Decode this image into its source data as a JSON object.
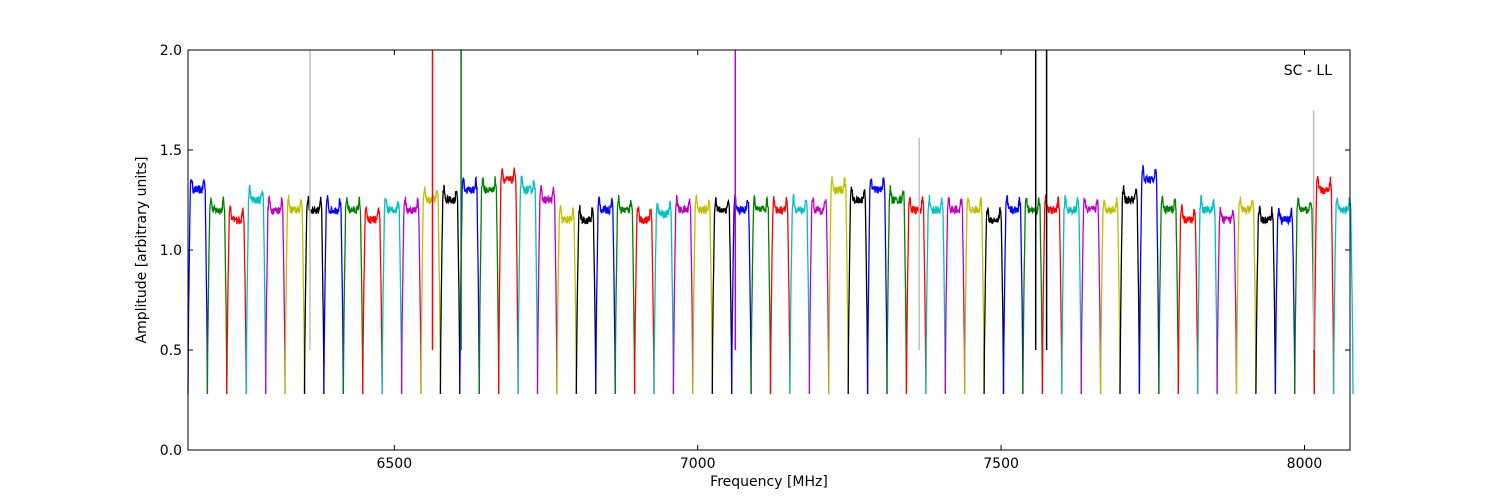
{
  "chart_data": {
    "type": "line",
    "xlabel": "Frequency [MHz]",
    "ylabel": "Amplitude [arbitrary units]",
    "annotation": "SC - LL",
    "annotation_position": "top-right",
    "xlim": [
      6160,
      8075
    ],
    "ylim": [
      0.0,
      2.0
    ],
    "xticks": [
      6500,
      7000,
      7500,
      8000
    ],
    "xtick_labels": [
      "6500",
      "7000",
      "7500",
      "8000"
    ],
    "yticks": [
      0.0,
      0.5,
      1.0,
      1.5,
      2.0
    ],
    "ytick_labels": [
      "0.0",
      "0.5",
      "1.0",
      "1.5",
      "2.0"
    ],
    "grid": false,
    "background_trace_color": "#bfbfbf",
    "series_colors": [
      "#0000ff",
      "#008000",
      "#ff0000",
      "#00bfbf",
      "#bf00bf",
      "#bfbf00",
      "#000000"
    ],
    "band_start_mhz": 6160,
    "band_width_mhz": 32,
    "band_count": 60,
    "band_floor": 0.28,
    "band_plateau": [
      1.3,
      1.2,
      1.15,
      1.25,
      1.2,
      1.2,
      1.2,
      1.2,
      1.2,
      1.15,
      1.2,
      1.2,
      1.25,
      1.25,
      1.3,
      1.3,
      1.35,
      1.3,
      1.25,
      1.15,
      1.15,
      1.2,
      1.2,
      1.15,
      1.18,
      1.2,
      1.2,
      1.2,
      1.2,
      1.2,
      1.2,
      1.2,
      1.2,
      1.3,
      1.25,
      1.3,
      1.25,
      1.2,
      1.2,
      1.2,
      1.2,
      1.15,
      1.2,
      1.2,
      1.2,
      1.2,
      1.2,
      1.2,
      1.25,
      1.35,
      1.2,
      1.15,
      1.2,
      1.15,
      1.2,
      1.15,
      1.15,
      1.2,
      1.3,
      1.2
    ],
    "spikes": [
      {
        "x": 6361,
        "y": 2.0,
        "color": "#bfbfbf"
      },
      {
        "x": 6563,
        "y": 2.0,
        "color": "#ff0000"
      },
      {
        "x": 6610,
        "y": 2.0,
        "color": "#008000"
      },
      {
        "x": 7062,
        "y": 2.0,
        "color": "#bf00bf"
      },
      {
        "x": 7557,
        "y": 2.0,
        "color": "#000000"
      },
      {
        "x": 7575,
        "y": 2.0,
        "color": "#000000"
      },
      {
        "x": 7365,
        "y": 1.56,
        "color": "#bfbfbf"
      },
      {
        "x": 8015,
        "y": 1.7,
        "color": "#bfbfbf"
      }
    ]
  }
}
